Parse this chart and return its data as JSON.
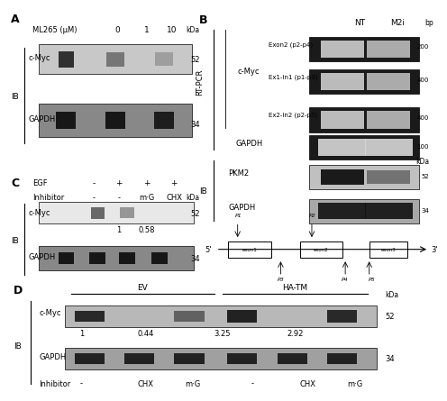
{
  "figure": {
    "bg_color": "white",
    "font_size": 6.5,
    "label_fontsize": 9,
    "bold_fontsize": 7
  },
  "panel_A": {
    "label": "A",
    "header_label": "ML265 (μM)",
    "concentrations": [
      "0",
      "1",
      "10"
    ],
    "kda": "kDa",
    "ib": "IB",
    "blot1_label": "c-Myc",
    "blot1_marker": "52",
    "blot2_label": "GAPDH",
    "blot2_marker": "34"
  },
  "panel_B": {
    "label": "B",
    "rtpcr_label": "RT-PCR",
    "ib_label": "IB",
    "cmyc_label": "c-Myc",
    "col1": "NT",
    "col2": "M2i",
    "bp": "bp",
    "kda": "kDa",
    "rows": [
      {
        "name": "Exon2 (p2-p4)",
        "marker": "200"
      },
      {
        "name": "Ex1-In1 (p1-p3)",
        "marker": "400"
      },
      {
        "name": "Ex2-In2 (p2-p5)",
        "marker": "400"
      }
    ],
    "gapdh_marker": "100",
    "pkm2_marker": "52",
    "gapdh2_marker": "34"
  },
  "panel_C": {
    "label": "C",
    "egf_label": "EGF",
    "egf_vals": [
      "-",
      "+",
      "+",
      "+"
    ],
    "inhibitor_label": "Inhibitor",
    "inhibitor_vals": [
      "-",
      "-",
      "m·G",
      "CHX"
    ],
    "kda": "kDa",
    "ib": "IB",
    "blot1_label": "c-Myc",
    "blot1_marker": "52",
    "blot2_label": "GAPDH",
    "blot2_marker": "34",
    "quant": [
      "1",
      "0.58"
    ]
  },
  "panel_D": {
    "label": "D",
    "ev_label": "EV",
    "hatm_label": "HA-TM",
    "kda": "kDa",
    "ib": "IB",
    "blot1_label": "c-Myc",
    "blot1_marker": "52",
    "blot2_label": "GAPDH",
    "blot2_marker": "34",
    "quant": [
      "1",
      "0.44",
      "3.25",
      "2.92"
    ],
    "inhibitor_label": "Inhibitor",
    "inhibitor_vals": [
      "·",
      "CHX",
      "m·G",
      "·",
      "CHX",
      "m·G"
    ]
  }
}
